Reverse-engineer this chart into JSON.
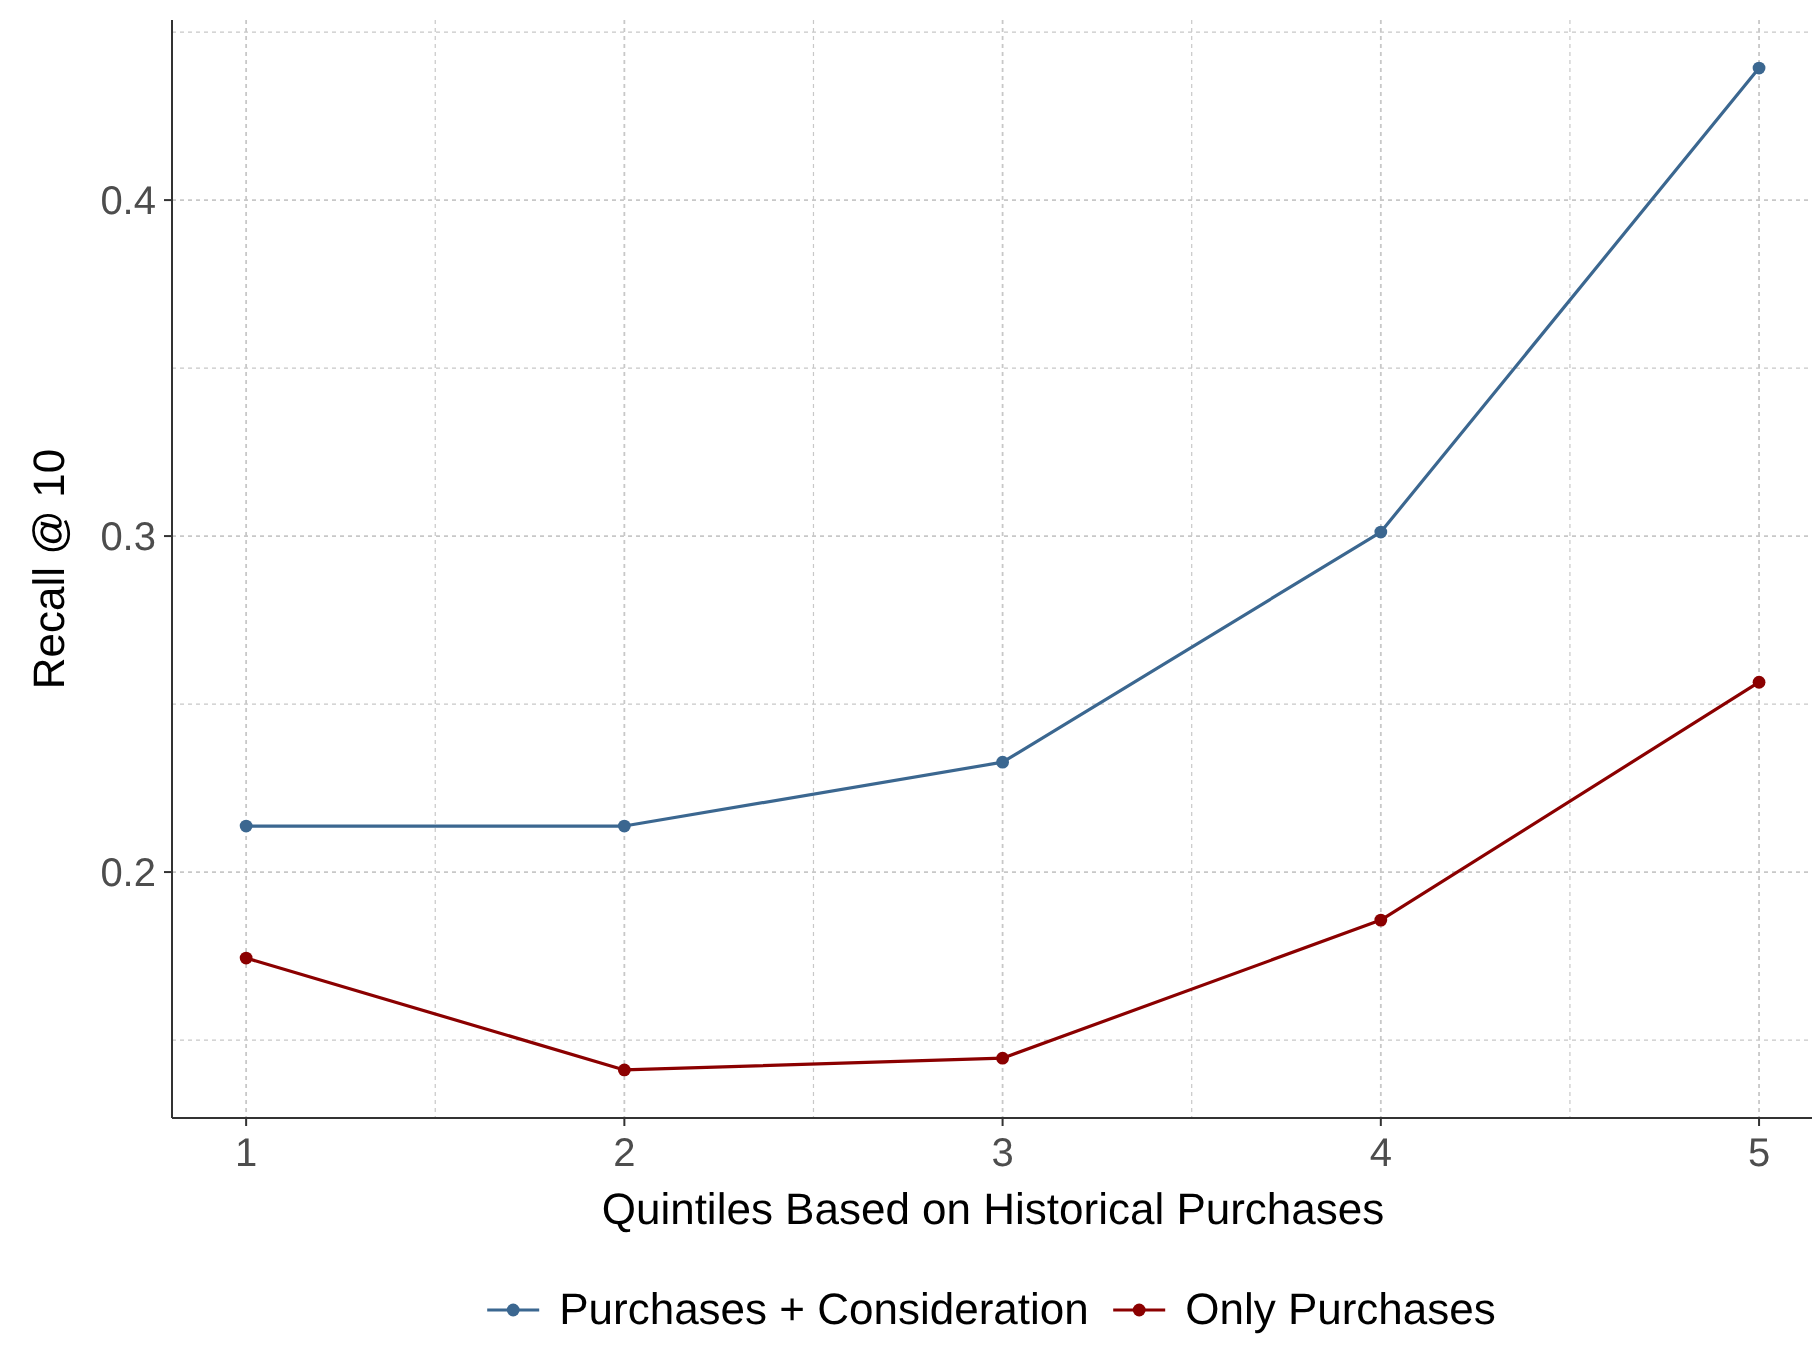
{
  "chart_data": {
    "type": "line",
    "xlabel": "Quintiles Based on Historical Purchases",
    "ylabel": "Recall @ 10",
    "x": [
      1,
      2,
      3,
      4,
      5
    ],
    "series": [
      {
        "name": "Purchases + Consideration",
        "color": "#3b6790",
        "values": [
          0.2137,
          0.2137,
          0.2327,
          0.3012,
          0.4393
        ]
      },
      {
        "name": "Only Purchases",
        "color": "#8b0000",
        "values": [
          0.1744,
          0.1411,
          0.1446,
          0.1857,
          0.2565
        ]
      }
    ],
    "xlim": [
      0.804,
      5.14
    ],
    "ylim": [
      0.1268,
      0.4536
    ],
    "xticks": [
      {
        "value": 1,
        "label": "1"
      },
      {
        "value": 1.5,
        "label": null
      },
      {
        "value": 2,
        "label": "2"
      },
      {
        "value": 2.5,
        "label": null
      },
      {
        "value": 3,
        "label": "3"
      },
      {
        "value": 3.5,
        "label": null
      },
      {
        "value": 4,
        "label": "4"
      },
      {
        "value": 4.5,
        "label": null
      },
      {
        "value": 5,
        "label": "5"
      }
    ],
    "yticks": [
      {
        "value": 0.15,
        "label": null
      },
      0.2,
      {
        "value": 0.25,
        "label": null
      },
      0.3,
      {
        "value": 0.35,
        "label": null
      },
      0.4,
      {
        "value": 0.45,
        "label": null
      }
    ],
    "grid": true,
    "legend": "bottom",
    "marker": "circle",
    "line_style": "solid"
  }
}
